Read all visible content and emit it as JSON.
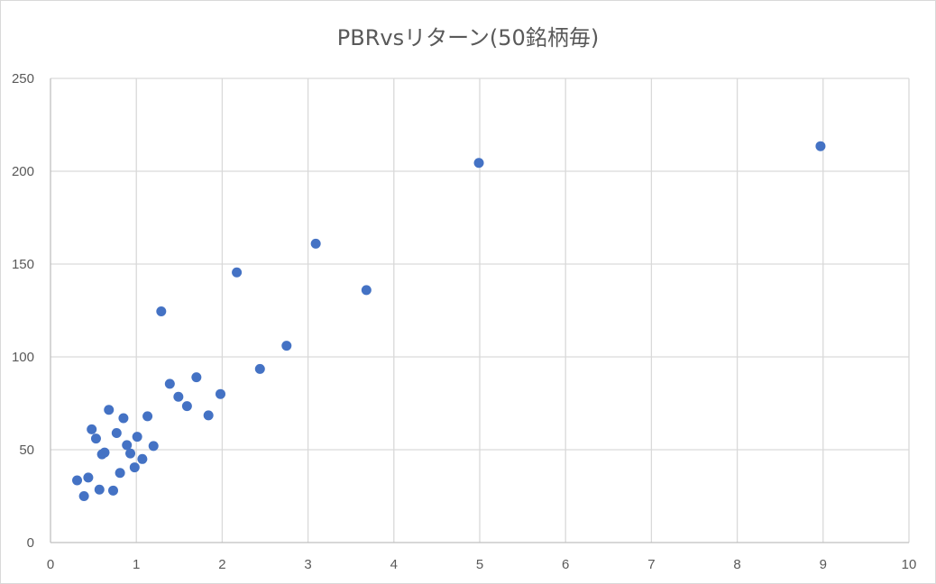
{
  "chart_data": {
    "type": "scatter",
    "title": "PBRvsリターン(50銘柄毎)",
    "xlabel": "",
    "ylabel": "",
    "xlim": [
      0,
      10
    ],
    "ylim": [
      0,
      250
    ],
    "x_ticks": [
      "0",
      "1",
      "2",
      "3",
      "4",
      "5",
      "6",
      "7",
      "8",
      "9",
      "10"
    ],
    "y_ticks": [
      "0",
      "50",
      "100",
      "150",
      "200",
      "250"
    ],
    "grid": true,
    "legend": "none",
    "marker_color": "#4472c4",
    "series": [
      {
        "points": [
          [
            0.31,
            33.5
          ],
          [
            0.39,
            25
          ],
          [
            0.44,
            35
          ],
          [
            0.48,
            61
          ],
          [
            0.53,
            56
          ],
          [
            0.57,
            28.5
          ],
          [
            0.6,
            47.5
          ],
          [
            0.63,
            48.5
          ],
          [
            0.68,
            71.5
          ],
          [
            0.73,
            28
          ],
          [
            0.77,
            59
          ],
          [
            0.81,
            37.5
          ],
          [
            0.85,
            67
          ],
          [
            0.89,
            52.5
          ],
          [
            0.93,
            48
          ],
          [
            0.98,
            40.5
          ],
          [
            1.01,
            57
          ],
          [
            1.07,
            45
          ],
          [
            1.13,
            68
          ],
          [
            1.2,
            52
          ],
          [
            1.29,
            124.5
          ],
          [
            1.39,
            85.5
          ],
          [
            1.49,
            78.5
          ],
          [
            1.59,
            73.5
          ],
          [
            1.7,
            89
          ],
          [
            1.84,
            68.5
          ],
          [
            1.98,
            80
          ],
          [
            2.17,
            145.5
          ],
          [
            2.44,
            93.5
          ],
          [
            2.75,
            106
          ],
          [
            3.09,
            161
          ],
          [
            3.68,
            136
          ],
          [
            4.99,
            204.5
          ],
          [
            8.97,
            213.5
          ]
        ]
      }
    ]
  }
}
